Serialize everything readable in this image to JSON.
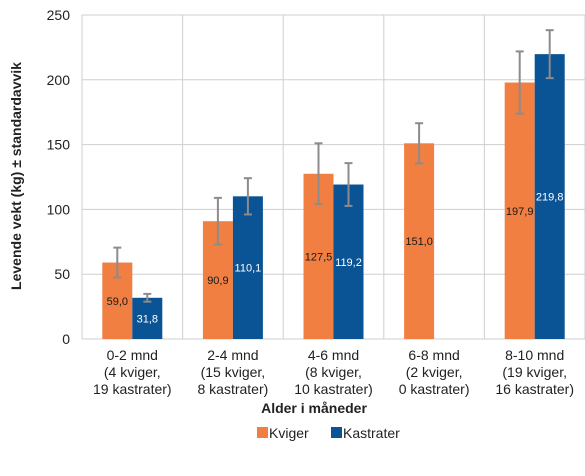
{
  "chart_data": {
    "type": "bar",
    "categories": [
      [
        "0-2 mnd",
        "(4 kviger,",
        "19 kastrater)"
      ],
      [
        "2-4 mnd",
        "(15 kviger,",
        "8 kastrater)"
      ],
      [
        "4-6 mnd",
        "(8 kviger,",
        "10 kastrater)"
      ],
      [
        "6-8 mnd",
        "(2 kviger,",
        "0 kastrater)"
      ],
      [
        "8-10 mnd",
        "(19 kviger,",
        "16 kastrater)"
      ]
    ],
    "series": [
      {
        "name": "Kviger",
        "color": "#F07F41",
        "values": [
          59.0,
          90.9,
          127.5,
          151.0,
          197.9
        ],
        "labels": [
          "59,0",
          "90,9",
          "127,5",
          "151,0",
          "197,9"
        ],
        "error": [
          11.5,
          18,
          23.5,
          15.5,
          24
        ],
        "label_color": "#1a1a1a"
      },
      {
        "name": "Kastrater",
        "color": "#0A5394",
        "values": [
          31.8,
          110.1,
          119.2,
          null,
          219.8
        ],
        "labels": [
          "31,8",
          "110,1",
          "119,2",
          null,
          "219,8"
        ],
        "error": [
          3,
          14,
          16.5,
          null,
          18.5
        ],
        "label_color": "#ffffff"
      }
    ],
    "xlabel": "Alder i måneder",
    "ylabel": "Levende vekt (kg) ± standardavvik",
    "ylim": [
      0,
      250
    ],
    "yticks": [
      0,
      50,
      100,
      150,
      200,
      250
    ],
    "grid": true,
    "legend_position": "bottom",
    "error_bar_color": "#8C8C8C"
  }
}
